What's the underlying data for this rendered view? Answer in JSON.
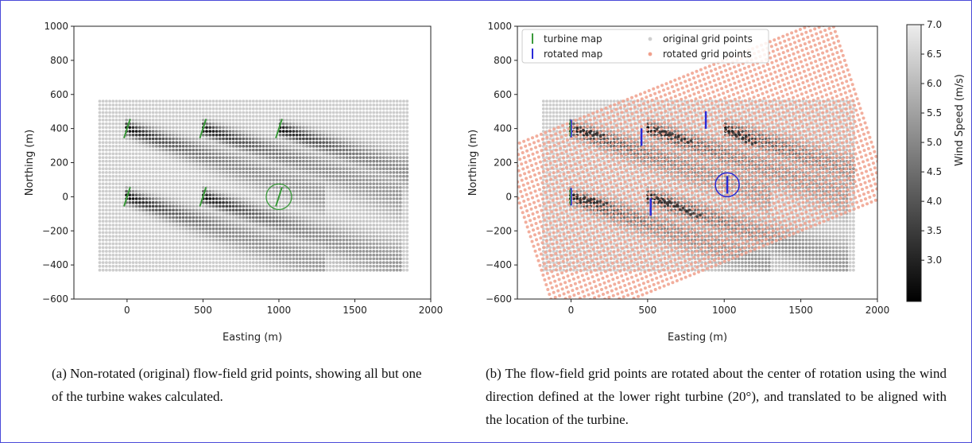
{
  "captions": {
    "a": "(a) Non-rotated (original) flow-field grid points, showing all but one of the turbine wakes calculated.",
    "b": "(b) The flow-field grid points are rotated about the center of rotation using the wind direction defined at the lower right turbine (20°), and translated to be aligned with the location of the turbine."
  },
  "colors": {
    "turbine_map": "#3a9a3a",
    "rotated_map": "#2a2ad8",
    "original_grid": "#cfcfcf",
    "rotated_grid": "#f0a08c"
  },
  "chart_data": [
    {
      "type": "scatter",
      "panel": "a",
      "xlabel": "Easting (m)",
      "ylabel": "Northing (m)",
      "xlim": [
        -350,
        2000
      ],
      "ylim": [
        -600,
        1000
      ],
      "xticks": [
        "0",
        "500",
        "1000",
        "1500",
        "2000"
      ],
      "yticks": [
        "−600",
        "−400",
        "−200",
        "0",
        "200",
        "400",
        "600",
        "800",
        "1000"
      ],
      "grid_extent": {
        "x": [
          -180,
          1850
        ],
        "y": [
          -430,
          580
        ]
      },
      "turbines": [
        {
          "x": 0,
          "y": 400
        },
        {
          "x": 500,
          "y": 400
        },
        {
          "x": 1000,
          "y": 400
        },
        {
          "x": 0,
          "y": 0
        },
        {
          "x": 500,
          "y": 0
        },
        {
          "x": 1000,
          "y": 0
        }
      ],
      "turbine_yaw_deg": 20,
      "highlighted_turbine": {
        "x": 1000,
        "y": 0
      },
      "legend": null
    },
    {
      "type": "scatter",
      "panel": "b",
      "xlabel": "Easting (m)",
      "ylabel": "Northing (m)",
      "xlim": [
        -350,
        2000
      ],
      "ylim": [
        -600,
        1000
      ],
      "xticks": [
        "0",
        "500",
        "1000",
        "1500",
        "2000"
      ],
      "yticks": [
        "−600",
        "−400",
        "−200",
        "0",
        "200",
        "400",
        "600",
        "800",
        "1000"
      ],
      "legend": {
        "placement": "top-left",
        "entries": [
          "turbine map",
          "rotated map",
          "original grid points",
          "rotated grid points"
        ]
      },
      "rotation_deg": 20,
      "rotated_map_turbines": [
        {
          "x": 0,
          "y": 400
        },
        {
          "x": 460,
          "y": 350
        },
        {
          "x": 880,
          "y": 450
        },
        {
          "x": 0,
          "y": 0
        },
        {
          "x": 520,
          "y": -60
        },
        {
          "x": 1020,
          "y": 70
        }
      ],
      "highlighted_turbine": {
        "x": 1020,
        "y": 70
      },
      "colorbar": {
        "label": "Wind Speed (m/s)",
        "min": 2.3,
        "max": 7.0,
        "ticks": [
          "3.0",
          "3.5",
          "4.0",
          "4.5",
          "5.0",
          "5.5",
          "6.0",
          "6.5",
          "7.0"
        ]
      }
    }
  ]
}
